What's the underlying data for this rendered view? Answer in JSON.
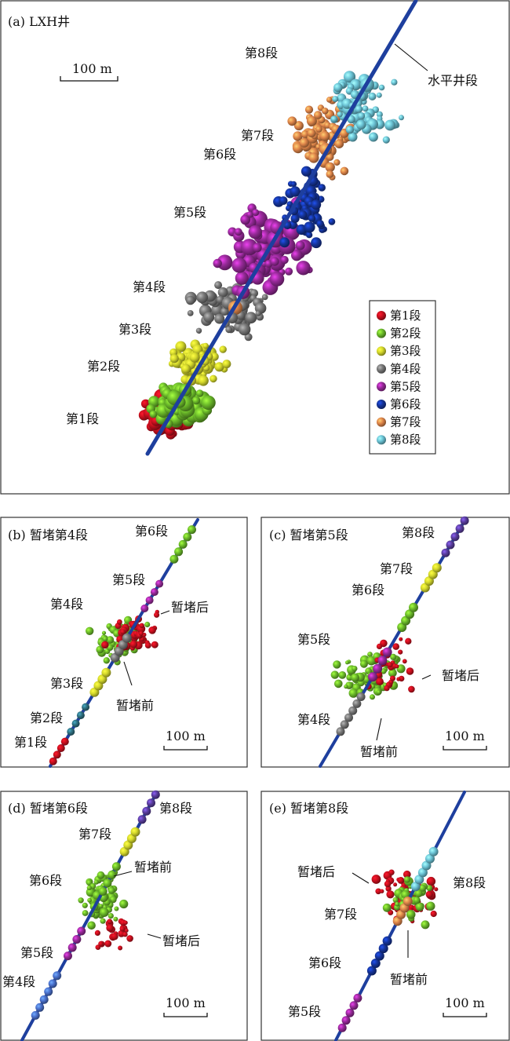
{
  "colors": {
    "stage1": "#c8101e",
    "stage2": "#6cbb2a",
    "stage3": "#d4d82c",
    "stage4": "#777777",
    "stage5": "#982a9a",
    "stage6": "#15349a",
    "stage7": "#e0864a",
    "stage8": "#6cc4d6",
    "well": "#1e3f9e",
    "stage2_section_b": "#2f6f80",
    "stage6_section_d": "#4a70cc",
    "stage8_section_cd": "#5a3e9e"
  },
  "panel_a": {
    "title": "(a) LXH井",
    "scale_label": "100 m",
    "well_label": "水平井段",
    "stage_labels": [
      "第1段",
      "第2段",
      "第3段",
      "第4段",
      "第5段",
      "第6段",
      "第7段",
      "第8段"
    ],
    "legend": [
      "第1段",
      "第2段",
      "第3段",
      "第4段",
      "第5段",
      "第6段",
      "第7段",
      "第8段"
    ]
  },
  "panel_b": {
    "title": "(b) 暂堵第4段",
    "scale_label": "100 m",
    "labels": {
      "s6": "第6段",
      "s5": "第5段",
      "s4": "第4段",
      "s3": "第3段",
      "s2": "第2段",
      "s1": "第1段",
      "after": "暂堵后",
      "before": "暂堵前"
    }
  },
  "panel_c": {
    "title": "(c) 暂堵第5段",
    "scale_label": "100 m",
    "labels": {
      "s8": "第8段",
      "s7": "第7段",
      "s6": "第6段",
      "s5": "第5段",
      "s4": "第4段",
      "after": "暂堵后",
      "before": "暂堵前"
    }
  },
  "panel_d": {
    "title": "(d) 暂堵第6段",
    "scale_label": "100 m",
    "labels": {
      "s8": "第8段",
      "s7": "第7段",
      "s6": "第6段",
      "s5": "第5段",
      "s4": "第4段",
      "before": "暂堵前",
      "after": "暂堵后"
    }
  },
  "panel_e": {
    "title": "(e) 暂堵第8段",
    "scale_label": "100 m",
    "labels": {
      "after": "暂堵后",
      "s8": "第8段",
      "s7": "第7段",
      "s6": "第6段",
      "s5": "第5段",
      "before": "暂堵前"
    }
  }
}
